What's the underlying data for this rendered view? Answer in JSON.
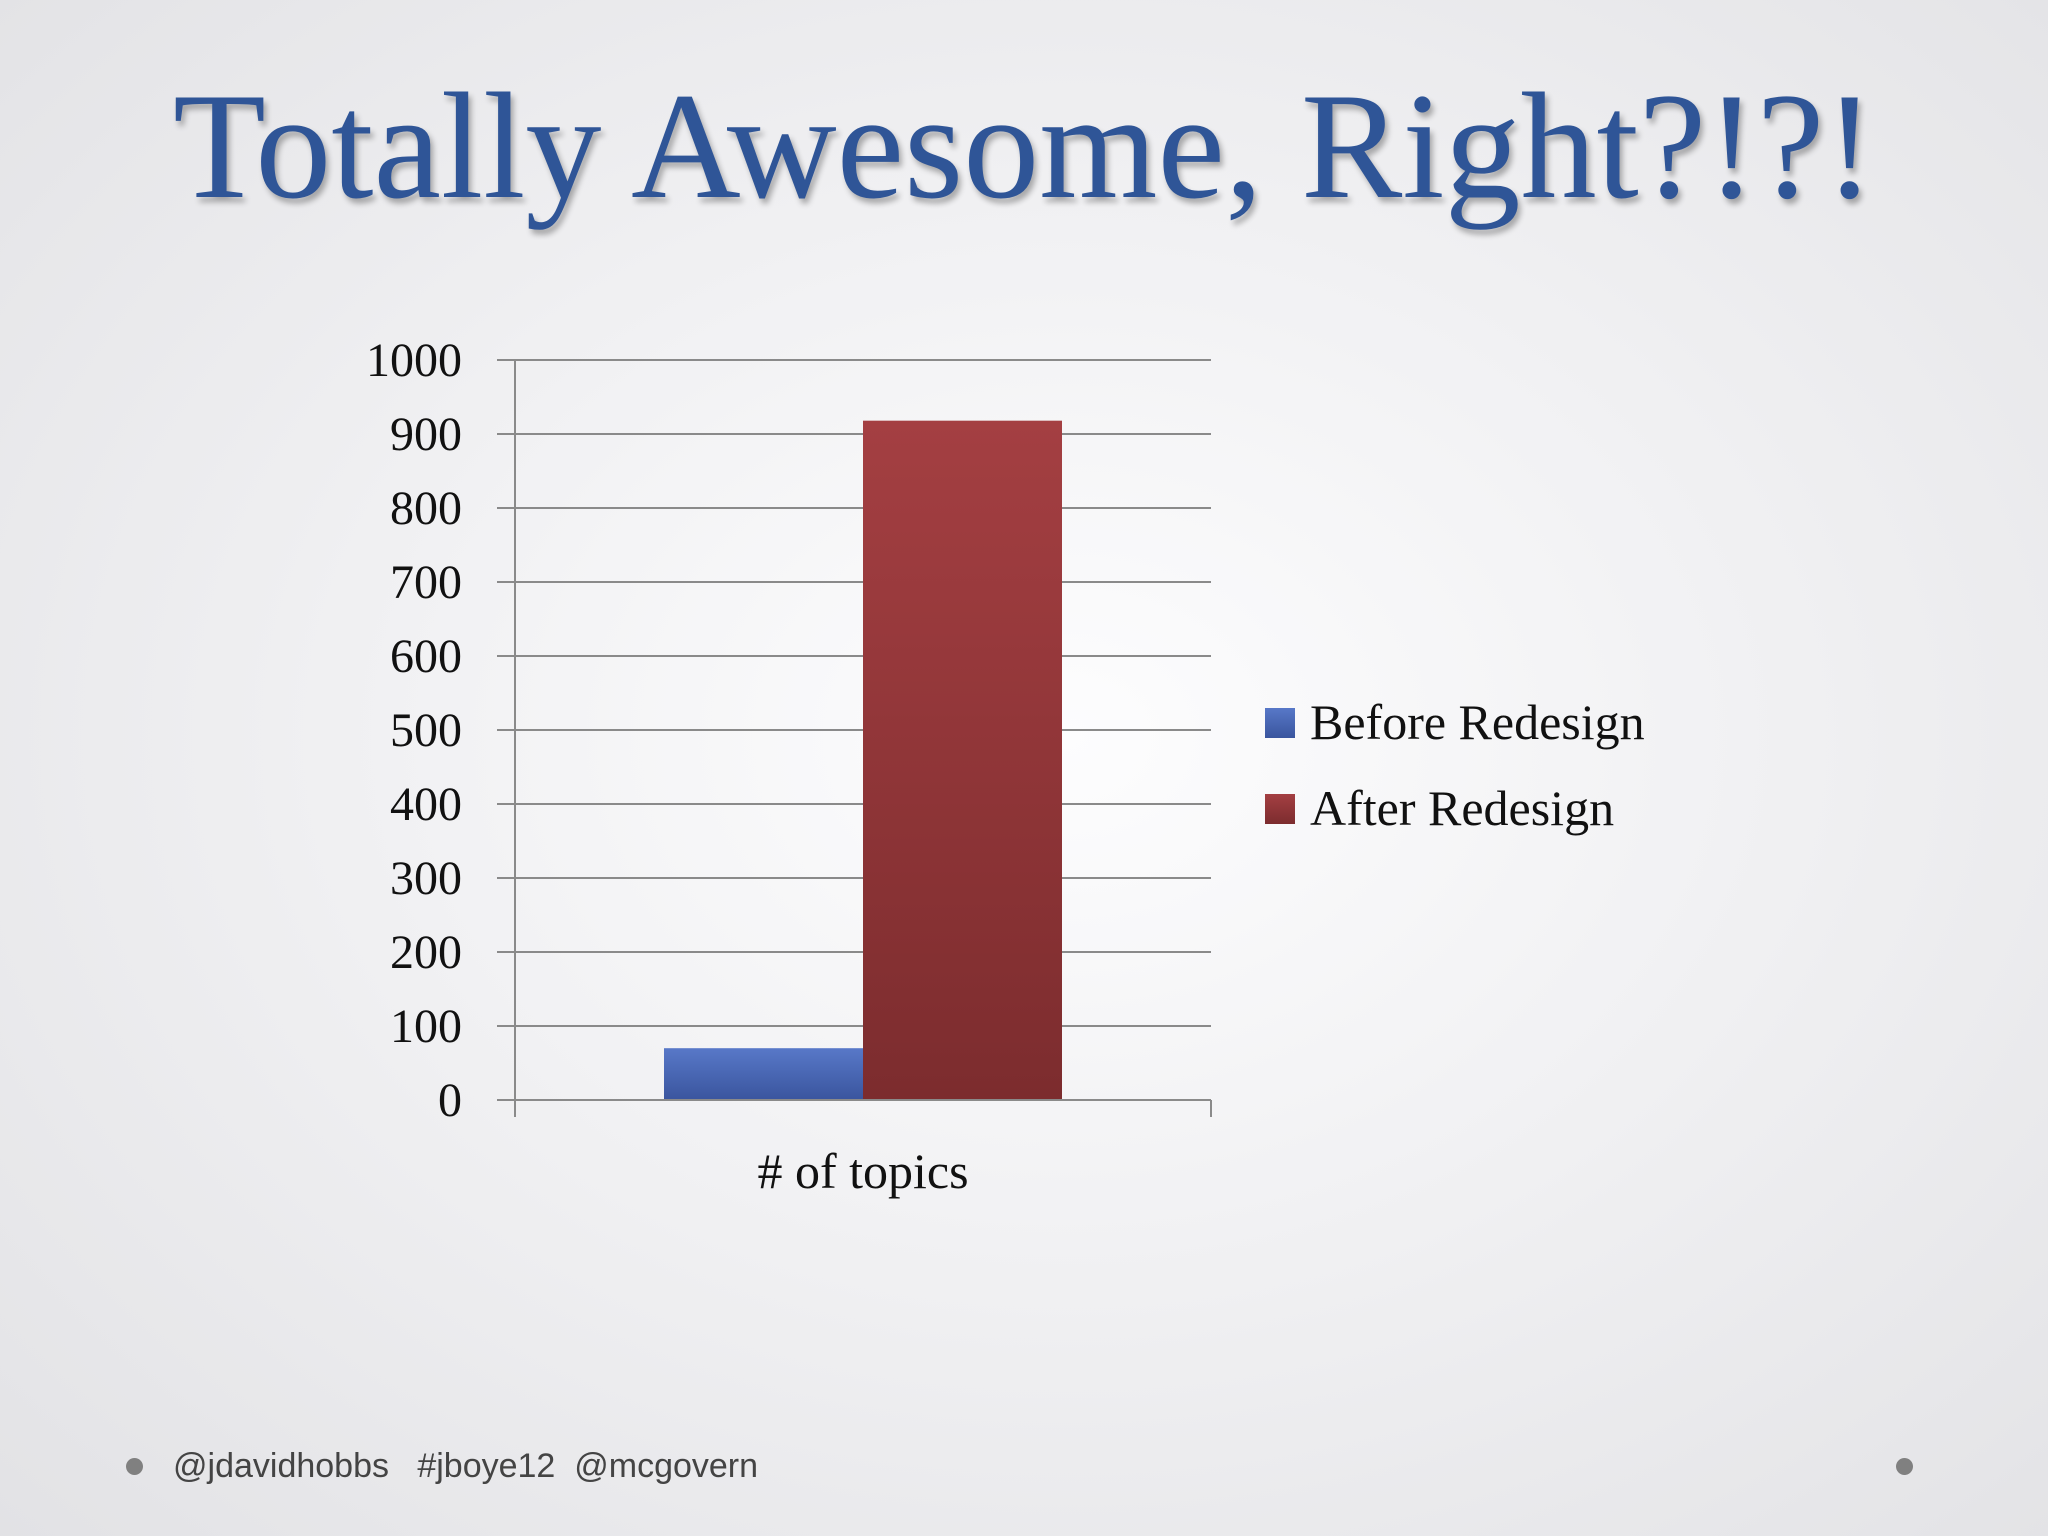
{
  "slide": {
    "title": "Totally Awesome, Right?!?!",
    "footer_text": "@jdavidhobbs   #jboye12  @mcgovern"
  },
  "chart_data": {
    "type": "bar",
    "title": "",
    "categories": [
      "# of topics"
    ],
    "series": [
      {
        "name": "Before Redesign",
        "values": [
          70
        ],
        "color": "#4a69b8"
      },
      {
        "name": "After Redesign",
        "values": [
          918
        ],
        "color": "#953939"
      }
    ],
    "ylim": [
      0,
      1000
    ],
    "yticks": [
      0,
      100,
      200,
      300,
      400,
      500,
      600,
      700,
      800,
      900,
      1000
    ],
    "xlabel": "",
    "ylabel": "",
    "grid": true,
    "legend": "right"
  }
}
